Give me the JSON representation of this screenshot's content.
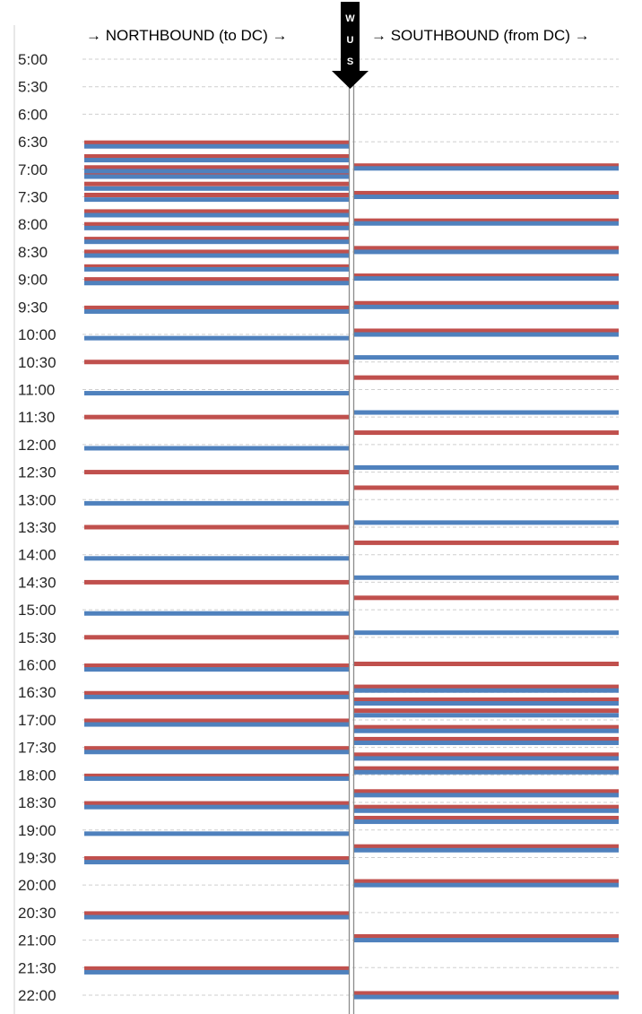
{
  "chart_data": {
    "type": "timeline",
    "headers": {
      "left": "→ NORTHBOUND (to DC) →",
      "right": "→ SOUTHBOUND (from DC) →"
    },
    "station_label": [
      "W",
      "U",
      "S"
    ],
    "y_ticks": [
      "5:00",
      "5:30",
      "6:00",
      "6:30",
      "7:00",
      "7:30",
      "8:00",
      "8:30",
      "9:00",
      "9:30",
      "10:00",
      "10:30",
      "11:00",
      "11:30",
      "12:00",
      "12:30",
      "13:00",
      "13:30",
      "14:00",
      "14:30",
      "15:00",
      "15:30",
      "16:00",
      "16:30",
      "17:00",
      "17:30",
      "18:00",
      "18:30",
      "19:00",
      "19:30",
      "20:00",
      "20:30",
      "21:00",
      "21:30",
      "22:00"
    ],
    "y_range": [
      "5:00",
      "22:00"
    ],
    "grid": true,
    "series": [
      {
        "color": "#c0504d",
        "northbound": [
          "6:31",
          "6:46",
          "6:58",
          "7:04",
          "7:16",
          "7:28",
          "7:46",
          "8:00",
          "8:16",
          "8:30",
          "8:46",
          "9:00",
          "9:31",
          "10:30",
          "11:30",
          "12:30",
          "13:30",
          "14:30",
          "15:30",
          "16:01",
          "16:31",
          "17:01",
          "17:31",
          "18:01",
          "18:31",
          "19:31",
          "20:31",
          "21:31"
        ],
        "southbound": [
          "6:56",
          "7:26",
          "7:56",
          "8:26",
          "8:56",
          "9:26",
          "9:56",
          "10:47",
          "11:47",
          "12:47",
          "13:47",
          "14:47",
          "15:59",
          "16:24",
          "16:38",
          "16:50",
          "17:08",
          "17:21",
          "17:38",
          "17:53",
          "18:18",
          "18:35",
          "18:47",
          "19:18",
          "19:56",
          "20:56",
          "21:58"
        ]
      },
      {
        "color": "#4f81bd",
        "northbound": [
          "6:35",
          "6:50",
          "7:02",
          "7:08",
          "7:21",
          "7:33",
          "7:50",
          "8:04",
          "8:19",
          "8:34",
          "8:49",
          "9:04",
          "9:35",
          "10:04",
          "11:04",
          "12:04",
          "13:04",
          "14:04",
          "15:04",
          "16:05",
          "16:35",
          "17:05",
          "17:35",
          "18:04",
          "18:35",
          "19:04",
          "19:35",
          "20:35",
          "21:35"
        ],
        "southbound": [
          "6:59",
          "7:30",
          "7:59",
          "8:30",
          "8:59",
          "9:30",
          "10:00",
          "10:25",
          "11:25",
          "12:25",
          "13:25",
          "14:25",
          "15:25",
          "16:28",
          "16:42",
          "16:55",
          "17:12",
          "17:25",
          "17:42",
          "17:57",
          "18:22",
          "18:39",
          "18:51",
          "19:22",
          "20:00",
          "21:00",
          "22:02"
        ]
      }
    ]
  }
}
